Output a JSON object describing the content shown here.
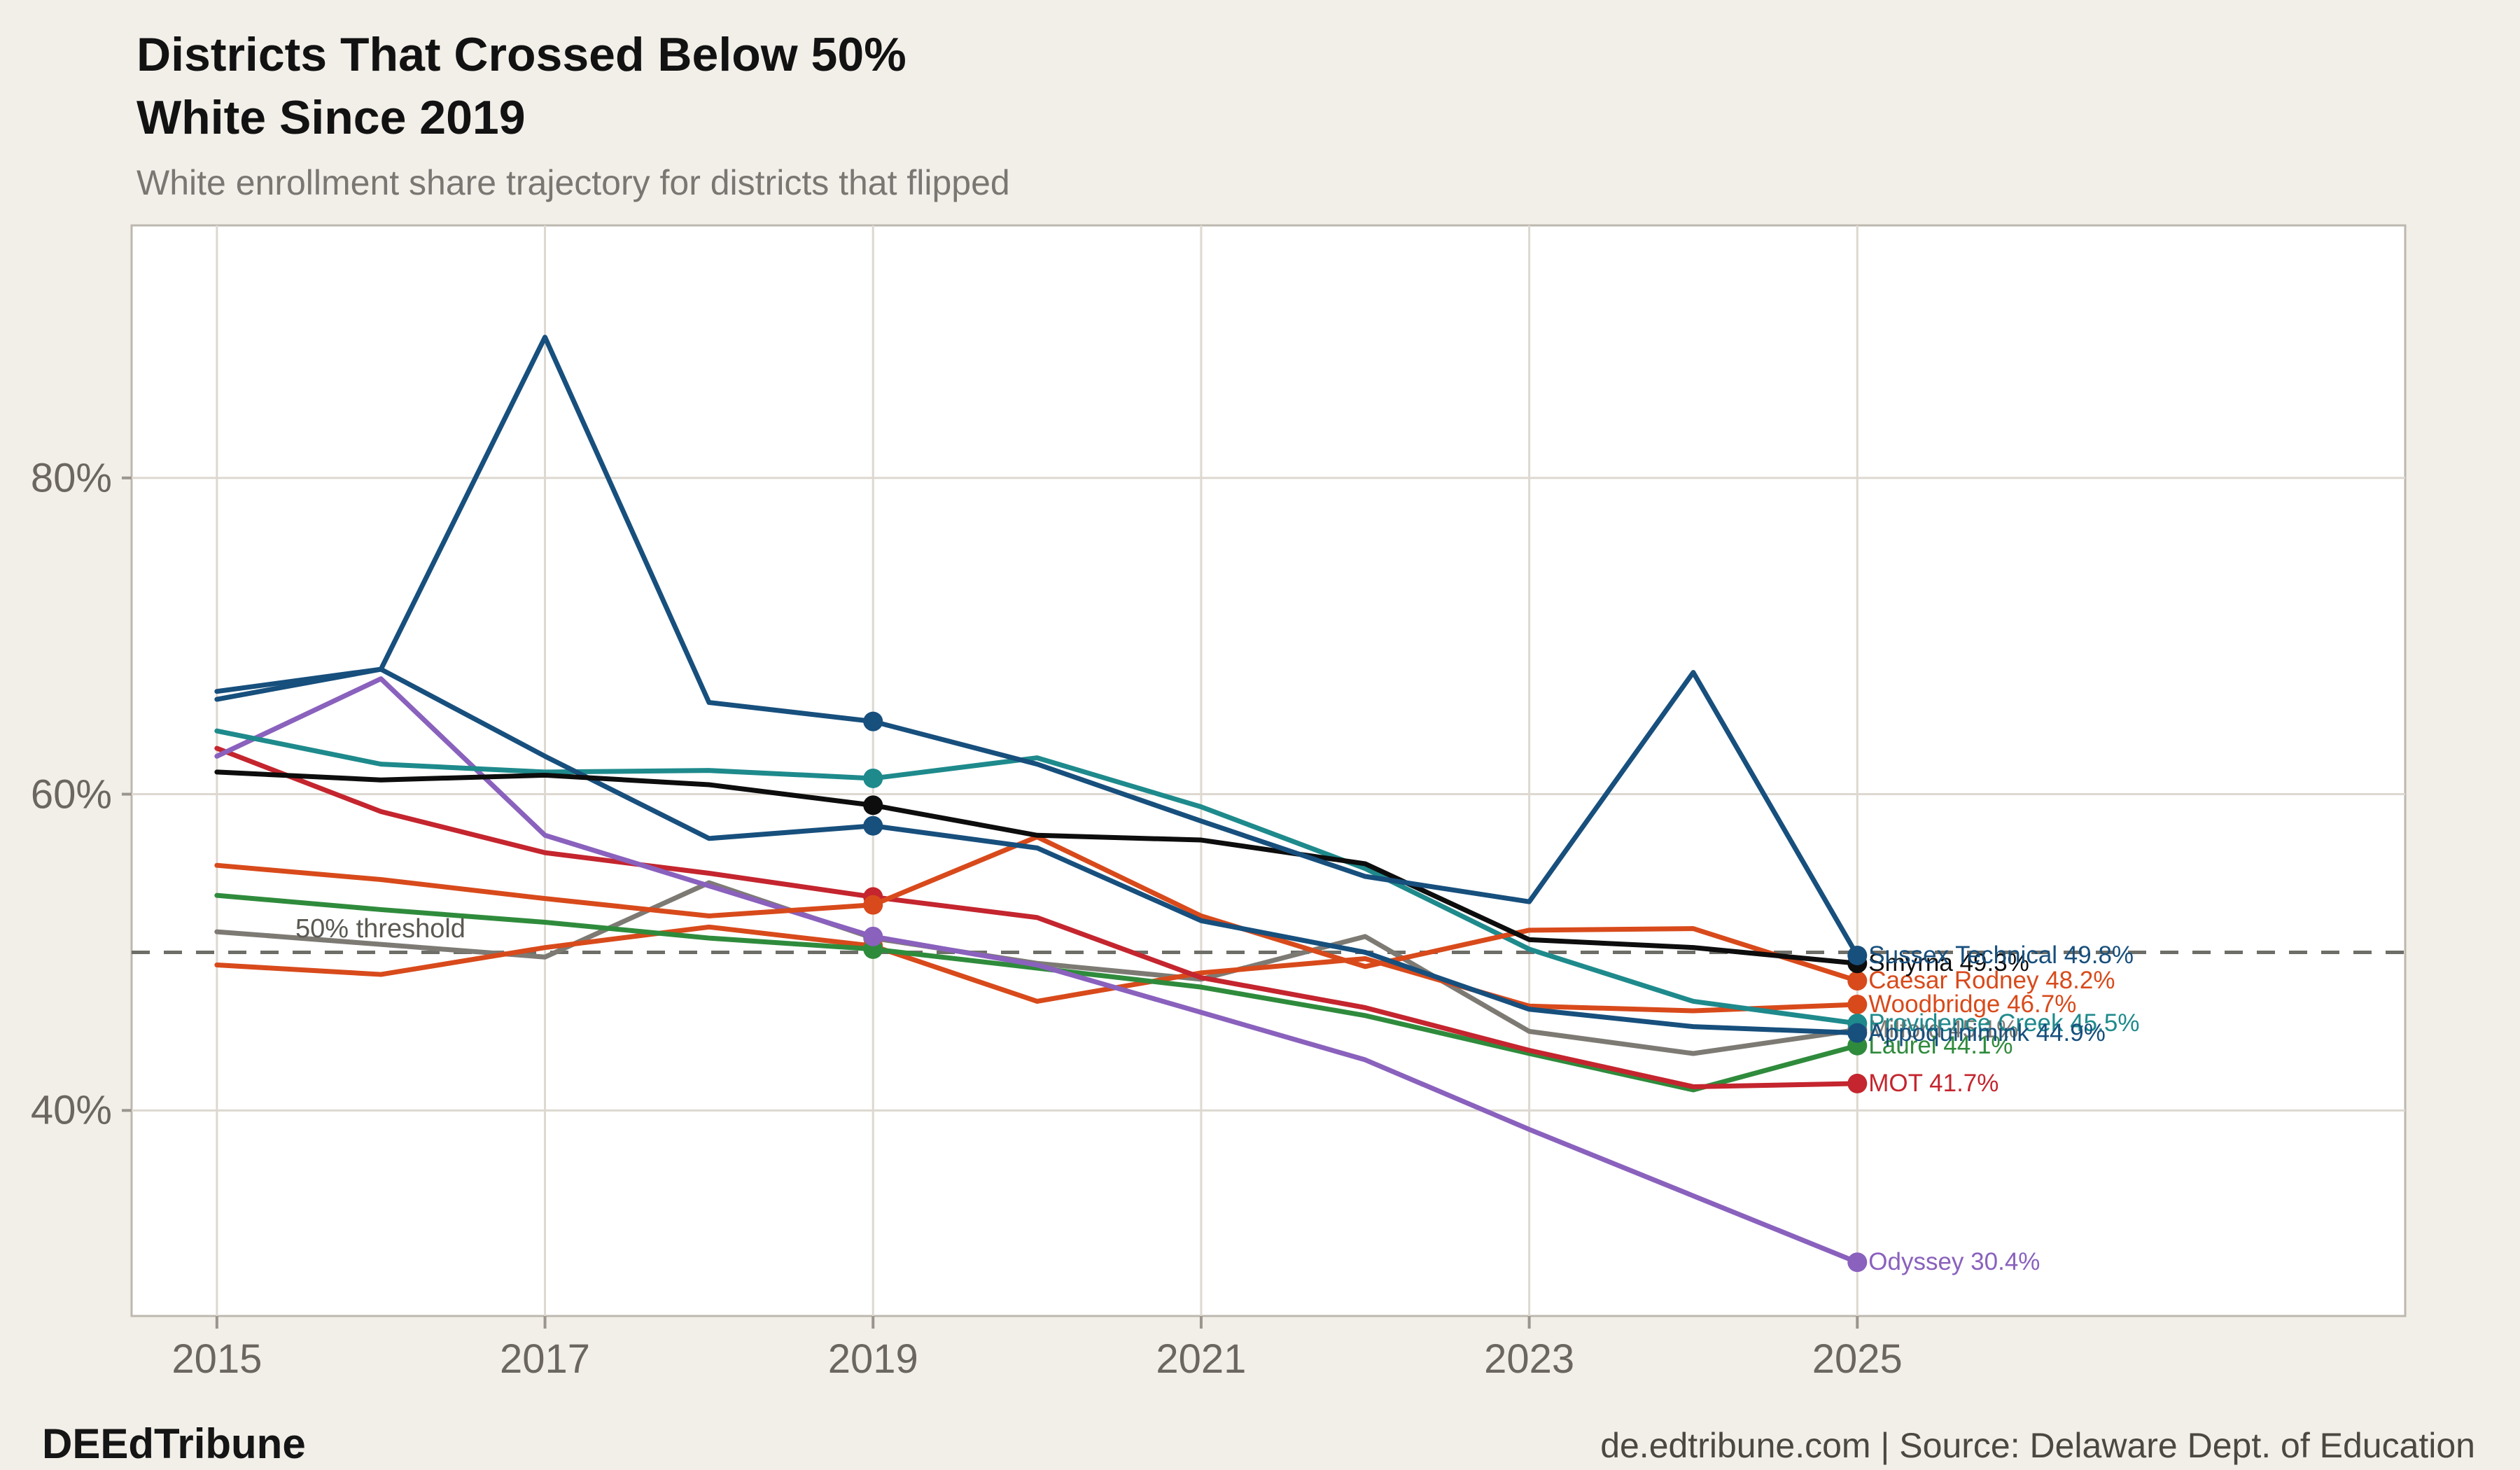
{
  "page": {
    "background": "#f2efe9",
    "plot_background": "#ffffff",
    "grid_color": "#ddd8d0",
    "axis_border_color": "#bdb8af",
    "tick_color": "#9a958d",
    "threshold_color": "#6e6e68"
  },
  "header": {
    "title_line1": "Districts That Crossed Below 50%",
    "title_line2": "White Since 2019",
    "subtitle": "White enrollment share trajectory for districts that flipped"
  },
  "footer": {
    "brand": "DEEdTribune",
    "source": "de.edtribune.com | Source: Delaware Dept. of Education"
  },
  "chart_data": {
    "type": "line",
    "title": "Districts That Crossed Below 50% White Since 2019",
    "subtitle": "White enrollment share trajectory for districts that flipped",
    "x": [
      2015,
      2016,
      2017,
      2018,
      2019,
      2020,
      2021,
      2022,
      2023,
      2024,
      2025
    ],
    "x_ticks": [
      2015,
      2017,
      2019,
      2021,
      2023,
      2025
    ],
    "x_tick_labels": [
      "2015",
      "2017",
      "2019",
      "2021",
      "2023",
      "2025"
    ],
    "y_ticks": [
      {
        "value": 40,
        "label": "40%"
      },
      {
        "value": 60,
        "label": "60%"
      },
      {
        "value": 80,
        "label": "80%"
      }
    ],
    "xlim": [
      2014.48,
      2028.34
    ],
    "ylim": [
      27.0,
      95.97
    ],
    "grid": "horizontal at 40/60/80, vertical at labeled years",
    "legend_position": "end-of-line labels at right",
    "marker_years": [
      2019,
      2025
    ],
    "threshold": {
      "value": 50,
      "label": "50% threshold"
    },
    "series": [
      {
        "name": "Milford",
        "color": "#7d7a74",
        "end_label": "Milford 45.1%",
        "values": [
          51.3,
          50.5,
          49.7,
          54.4,
          50.9,
          49.3,
          48.3,
          51.0,
          45.0,
          43.6,
          45.1
        ]
      },
      {
        "name": "Woodbridge",
        "color": "#d84a1b",
        "end_label": "Woodbridge 46.7%",
        "values": [
          49.2,
          48.6,
          50.3,
          51.6,
          50.4,
          46.9,
          48.7,
          49.6,
          46.6,
          46.3,
          46.7
        ]
      },
      {
        "name": "Laurel",
        "color": "#2f8b3c",
        "end_label": "Laurel 44.1%",
        "values": [
          53.6,
          52.7,
          51.9,
          50.9,
          50.2,
          49.0,
          47.8,
          46.0,
          43.6,
          41.3,
          44.1
        ]
      },
      {
        "name": "MOT",
        "color": "#c4252e",
        "end_label": "MOT 41.7%",
        "values": [
          62.9,
          58.9,
          56.3,
          55.0,
          53.5,
          52.2,
          48.4,
          46.5,
          43.8,
          41.5,
          41.7
        ]
      },
      {
        "name": "Odyssey",
        "color": "#8a61bd",
        "end_label": "Odyssey 30.4%",
        "values": [
          62.4,
          67.3,
          57.4,
          54.2,
          51.0,
          49.2,
          46.2,
          43.2,
          38.8,
          34.6,
          30.4
        ]
      },
      {
        "name": "Providence Creek",
        "color": "#1e8a8c",
        "end_label": "Providence Creek 45.5%",
        "values": [
          64.0,
          61.9,
          61.4,
          61.5,
          61.0,
          62.3,
          59.2,
          55.3,
          50.2,
          46.9,
          45.5
        ]
      },
      {
        "name": "Caesar Rodney",
        "color": "#d84a1b",
        "end_label": "Caesar Rodney 48.2%",
        "values": [
          55.5,
          54.6,
          53.4,
          52.3,
          53.0,
          57.3,
          52.3,
          49.1,
          51.4,
          51.5,
          48.2
        ]
      },
      {
        "name": "Appoquinimink",
        "color": "#174f7d",
        "end_label": "Appoquinimink 44.9%",
        "values": [
          66.0,
          67.9,
          62.4,
          57.2,
          58.0,
          56.6,
          52.0,
          50.0,
          46.4,
          45.3,
          44.9
        ]
      },
      {
        "name": "Smyrna",
        "color": "#0d0d0d",
        "end_label": "Smyrna 49.3%",
        "values": [
          61.4,
          60.9,
          61.2,
          60.6,
          59.3,
          57.4,
          57.1,
          55.6,
          50.8,
          50.3,
          49.3
        ]
      },
      {
        "name": "Sussex Technical",
        "color": "#174f7d",
        "end_label": "Sussex Technical 49.8%",
        "values": [
          66.5,
          67.9,
          88.9,
          65.8,
          64.6,
          61.9,
          58.3,
          54.8,
          53.2,
          67.7,
          49.8
        ]
      }
    ]
  }
}
